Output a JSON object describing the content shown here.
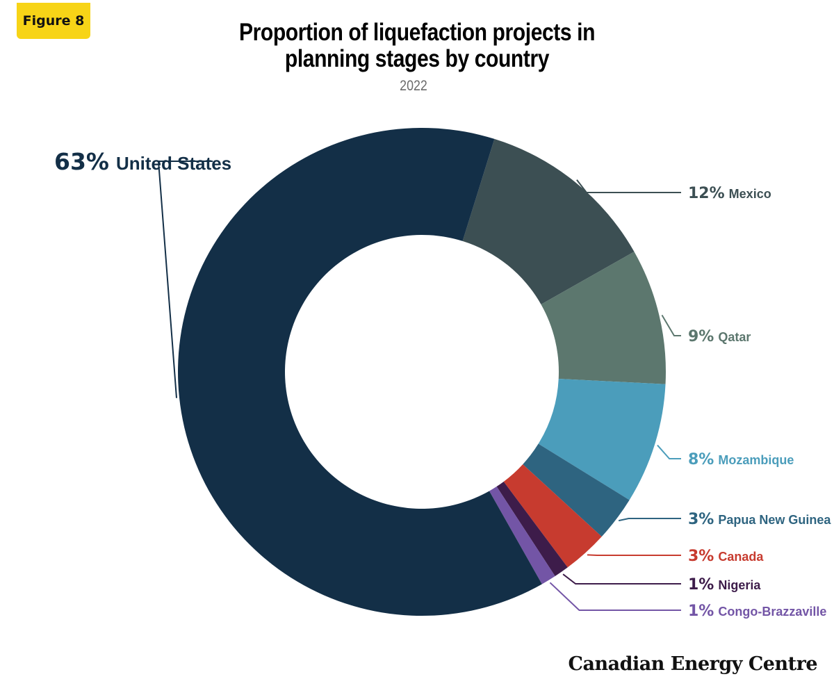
{
  "badge": "Figure 8",
  "brand": "Canadian Energy Centre",
  "chart_data": {
    "type": "pie",
    "title": "Proportion of liquefaction projects in planning stages by country",
    "subtitle": "2022",
    "slices": [
      {
        "label": "United States",
        "pct_label": "63%",
        "value": 63,
        "color": "#132f47"
      },
      {
        "label": "Mexico",
        "pct_label": "12%",
        "value": 12,
        "color": "#3c4f53"
      },
      {
        "label": "Qatar",
        "pct_label": "9%",
        "value": 9,
        "color": "#5c776e"
      },
      {
        "label": "Mozambique",
        "pct_label": "8%",
        "value": 8,
        "color": "#4b9dbb"
      },
      {
        "label": "Papua New Guinea",
        "pct_label": "3%",
        "value": 3,
        "color": "#2e6480"
      },
      {
        "label": "Canada",
        "pct_label": "3%",
        "value": 3,
        "color": "#c73b2f"
      },
      {
        "label": "Nigeria",
        "pct_label": "1%",
        "value": 1,
        "color": "#3d1c4a"
      },
      {
        "label": "Congo-Brazzaville",
        "pct_label": "1%",
        "value": 1,
        "color": "#7355a6"
      }
    ]
  }
}
